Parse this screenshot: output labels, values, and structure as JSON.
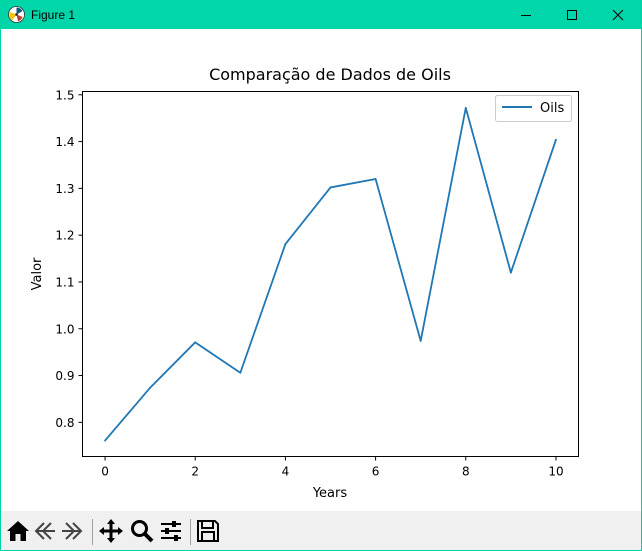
{
  "window": {
    "title": "Figure 1",
    "accent_color": "#00d6aa"
  },
  "toolbar": {
    "buttons": [
      {
        "name": "home-icon",
        "label": "Home"
      },
      {
        "name": "back-icon",
        "label": "Back"
      },
      {
        "name": "forward-icon",
        "label": "Forward"
      },
      {
        "name": "pan-icon",
        "label": "Pan"
      },
      {
        "name": "zoom-icon",
        "label": "Zoom"
      },
      {
        "name": "configure-subplots-icon",
        "label": "Configure subplots"
      },
      {
        "name": "save-icon",
        "label": "Save"
      }
    ]
  },
  "chart_data": {
    "type": "line",
    "title": "Comparação de Dados de Oils",
    "xlabel": "Years",
    "ylabel": "Valor",
    "x": [
      0,
      1,
      2,
      3,
      4,
      5,
      6,
      7,
      8,
      9,
      10
    ],
    "series": [
      {
        "name": "Oils",
        "color": "#1f77b4",
        "values": [
          0.761,
          0.874,
          0.971,
          0.906,
          1.181,
          1.302,
          1.32,
          0.974,
          1.472,
          1.12,
          1.404
        ]
      }
    ],
    "xlim": [
      -0.5,
      10.5
    ],
    "ylim": [
      0.727,
      1.507
    ],
    "xticks": [
      "0",
      "2",
      "4",
      "6",
      "8",
      "10"
    ],
    "yticks": [
      "0.8",
      "0.9",
      "1.0",
      "1.1",
      "1.2",
      "1.3",
      "1.4",
      "1.5"
    ],
    "grid": false,
    "legend_position": "top-right"
  }
}
